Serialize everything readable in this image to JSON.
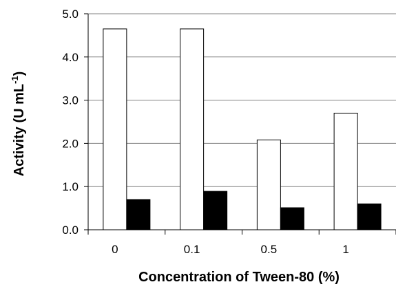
{
  "chart_data": {
    "type": "bar",
    "title": "",
    "xlabel": "Concentration of Tween-80 (%)",
    "ylabel": "Activity (U mL",
    "ylabel_superscript": "-1",
    "ylabel_close": ")",
    "categories": [
      "0",
      "0.1",
      "0.5",
      "1"
    ],
    "series": [
      {
        "values": [
          4.65,
          4.65,
          2.08,
          2.7
        ],
        "fill": "#ffffff"
      },
      {
        "values": [
          0.7,
          0.89,
          0.51,
          0.6
        ],
        "fill": "#000000"
      }
    ],
    "ylim": [
      0,
      5
    ],
    "yticks": [
      "0.0",
      "1.0",
      "2.0",
      "3.0",
      "4.0",
      "5.0"
    ],
    "grid": "horizontal",
    "legend": "none",
    "colors": {
      "outline": "#000000",
      "gridline": "#808080"
    }
  }
}
